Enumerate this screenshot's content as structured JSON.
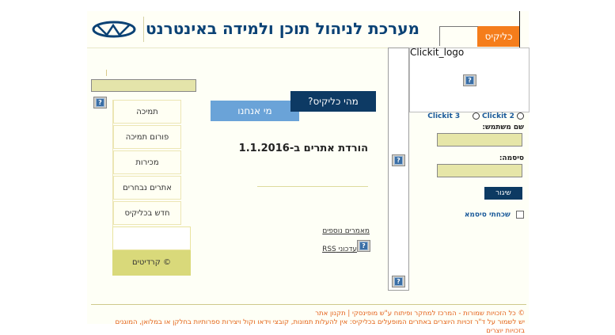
{
  "header": {
    "title": "מערכת לניהול תוכן ולמידה באינטרנט",
    "tab_label": "כליקיס",
    "logo_alt": "Clickit_logo"
  },
  "sidebar": {
    "items": [
      {
        "label": "תמיכה"
      },
      {
        "label": "פורום תמיכה"
      },
      {
        "label": "מכירות"
      },
      {
        "label": "אתרים נבחרים"
      },
      {
        "label": "חדש בכליקיס"
      }
    ],
    "credits": "© קרדיטים"
  },
  "main": {
    "tabs": [
      {
        "label": "מהי כליקיס?"
      },
      {
        "label": "מי אנחנו"
      }
    ],
    "headline": "הורדת אתרים ב-1.1.2016",
    "more_articles": "מאמרים נוספים",
    "rss": "עדכוני RSS"
  },
  "login": {
    "option1": "Clickit 3",
    "option2": "Clickit 2",
    "username_label": "שם משתמש:",
    "password_label": "סיסמה:",
    "submit": "שיגור",
    "forgot": "שכחתי סיסמא"
  },
  "footer": {
    "line1": "© כל הזכויות שמורות - המרכז למחקר ופיתוח ע\"ש מופינסקי | תקנון אתר",
    "line2": "יש לשמור על ד\"ר זכויות היוצרים באתרים המופעלים בכליקיס: אין להעלות תמונות, קובצי וידאו וקול ויצירות ספרותיות בחלקן או במלואן, המוגנים",
    "line3": "בזכויות יוצרים"
  },
  "colors": {
    "brand_navy": "#0d3a64",
    "accent_orange": "#f57d1b",
    "field_yellow": "#e6e6a8",
    "tab_blue": "#6aa3d8"
  }
}
